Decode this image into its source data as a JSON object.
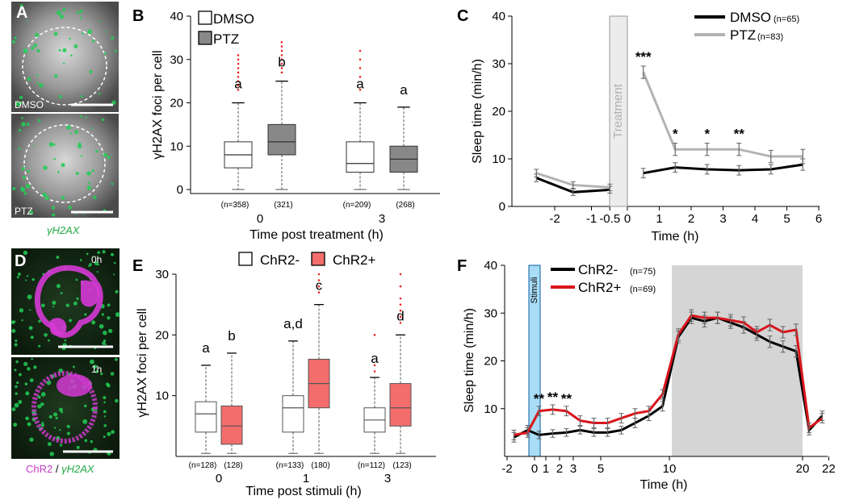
{
  "colors": {
    "dmso": "#ffffff",
    "ptz": "#888888",
    "chr2_neg": "#ffffff",
    "chr2_pos": "#f36d6d",
    "line_dmso": "#000000",
    "line_ptz": "#b3b3b3",
    "line_chr2_pos": "#d9151b",
    "outlier": "#e8261f",
    "stimuli_bar": "#a9dcf6",
    "treatment_bar": "#ececec",
    "night_shade": "#d5d5d5",
    "gfp": "#22cc55",
    "magenta": "#e040e0"
  },
  "panels": {
    "A": {
      "letter": "A",
      "images": [
        {
          "label": "DMSO",
          "icon": "nucleus-micrograph"
        },
        {
          "label": "PTZ",
          "icon": "nucleus-micrograph"
        }
      ],
      "caption": "γH2AX"
    },
    "D": {
      "letter": "D",
      "images": [
        {
          "label": "0h",
          "icon": "neuron-micrograph"
        },
        {
          "label": "1h",
          "icon": "neuron-micrograph"
        }
      ],
      "caption_chr2": "ChR2",
      "caption_sep": " / ",
      "caption_h2ax": "γH2AX"
    }
  },
  "chart_data": [
    {
      "panel": "B",
      "type": "box",
      "ylabel": "γH2AX foci per cell",
      "xlabel": "Time post treatment (h)",
      "ylim": [
        0,
        40
      ],
      "yticks": [
        0,
        10,
        20,
        30,
        40
      ],
      "legend": [
        "DMSO",
        "PTZ"
      ],
      "groups": [
        {
          "label": "0",
          "boxes": [
            {
              "series": "DMSO",
              "n": "(n=358)",
              "min": 0,
              "q1": 5,
              "median": 8,
              "q3": 11,
              "max": 20,
              "outliers": [
                23,
                24,
                25,
                26,
                27,
                28,
                29,
                30,
                31
              ],
              "letter": "a"
            },
            {
              "series": "PTZ",
              "n": "(321)",
              "min": 0,
              "q1": 8,
              "median": 11,
              "q3": 15,
              "max": 25,
              "outliers": [
                27,
                28,
                29,
                30,
                31,
                32,
                33,
                34
              ],
              "letter": "b"
            }
          ]
        },
        {
          "label": "3",
          "boxes": [
            {
              "series": "DMSO",
              "n": "(n=209)",
              "min": 0,
              "q1": 4,
              "median": 6,
              "q3": 11,
              "max": 20,
              "outliers": [
                23,
                26,
                28,
                30,
                32
              ],
              "letter": "a"
            },
            {
              "series": "PTZ",
              "n": "(268)",
              "min": 0,
              "q1": 4,
              "median": 7,
              "q3": 10,
              "max": 19,
              "outliers": [],
              "letter": "a"
            }
          ]
        }
      ]
    },
    {
      "panel": "C",
      "type": "line",
      "ylabel": "Sleep time (min/h)",
      "xlabel": "Time (h)",
      "ylim": [
        0,
        40
      ],
      "yticks": [
        0,
        10,
        20,
        30,
        40
      ],
      "xticks_pre": [
        "-2",
        "-1",
        "-0.5"
      ],
      "xticks_post": [
        "0",
        "1",
        "2",
        "3",
        "4",
        "5",
        "6"
      ],
      "band_label": "Treatment",
      "series": [
        {
          "name": "DMSO",
          "n": "(n=65)",
          "pre": {
            "x": [
              -2.5,
              -1.5,
              -0.5
            ],
            "y": [
              6,
              3,
              3.5
            ],
            "err": [
              0.8,
              0.7,
              0.7
            ]
          },
          "post": {
            "x": [
              0.5,
              1.5,
              2.5,
              3.5,
              4.5,
              5.5
            ],
            "y": [
              7,
              8.2,
              7.8,
              7.6,
              7.8,
              8.8
            ],
            "err": [
              1.0,
              1.0,
              1.0,
              1.0,
              1.0,
              1.2
            ]
          }
        },
        {
          "name": "PTZ",
          "n": "(n=83)",
          "pre": {
            "x": [
              -2.5,
              -1.5,
              -0.5
            ],
            "y": [
              7,
              4.5,
              4
            ],
            "err": [
              0.8,
              0.7,
              0.7
            ]
          },
          "post": {
            "x": [
              0.5,
              1.5,
              2.5,
              3.5,
              4.5,
              5.5
            ],
            "y": [
              28.2,
              12,
              12,
              12,
              10.5,
              10.5
            ],
            "err": [
              1.3,
              1.3,
              1.3,
              1.3,
              1.3,
              1.5
            ]
          }
        }
      ],
      "annotations": [
        {
          "x": 0.5,
          "text": "***"
        },
        {
          "x": 1.5,
          "text": "*"
        },
        {
          "x": 2.5,
          "text": "*"
        },
        {
          "x": 3.5,
          "text": "**"
        }
      ]
    },
    {
      "panel": "E",
      "type": "box",
      "ylabel": "γH2AX foci per cell",
      "xlabel": "Time post stimuli (h)",
      "ylim": [
        0,
        30
      ],
      "yticks": [
        10,
        20,
        30
      ],
      "legend": [
        "ChR2-",
        "ChR2+"
      ],
      "groups": [
        {
          "label": "0",
          "boxes": [
            {
              "series": "ChR2-",
              "n": "(n=128)",
              "min": 0.5,
              "q1": 4,
              "median": 7,
              "q3": 9,
              "max": 15,
              "outliers": [],
              "letter": "a"
            },
            {
              "series": "ChR2+",
              "n": "(128)",
              "min": 0.5,
              "q1": 2,
              "median": 5,
              "q3": 8.3,
              "max": 17,
              "outliers": [],
              "letter": "b"
            }
          ]
        },
        {
          "label": "1",
          "boxes": [
            {
              "series": "ChR2-",
              "n": "(n=133)",
              "min": 0.5,
              "q1": 4,
              "median": 8,
              "q3": 10,
              "max": 19,
              "outliers": [],
              "letter": "a,d"
            },
            {
              "series": "ChR2+",
              "n": "(180)",
              "min": 0.5,
              "q1": 8,
              "median": 12,
              "q3": 16,
              "max": 25,
              "outliers": [
                27,
                28,
                29,
                30
              ],
              "letter": "c"
            }
          ]
        },
        {
          "label": "3",
          "boxes": [
            {
              "series": "ChR2-",
              "n": "(n=112)",
              "min": 0.5,
              "q1": 4,
              "median": 6,
              "q3": 8,
              "max": 13,
              "outliers": [
                14,
                15,
                20
              ],
              "letter": "a"
            },
            {
              "series": "ChR2+",
              "n": "(123)",
              "min": 0.5,
              "q1": 5,
              "median": 8,
              "q3": 12,
              "max": 20,
              "outliers": [
                22,
                23,
                24,
                25,
                26,
                28,
                30
              ],
              "letter": "d"
            }
          ]
        }
      ]
    },
    {
      "panel": "F",
      "type": "line",
      "ylabel": "Sleep time (min/h)",
      "xlabel": "Time (h)",
      "ylim": [
        0,
        40
      ],
      "yticks": [
        10,
        20,
        30,
        40
      ],
      "xticks": [
        "-2",
        "0",
        "1",
        "2",
        "3",
        "5",
        "10",
        "20",
        "22"
      ],
      "band_label": "Stimuli",
      "series": [
        {
          "name": "ChR2-",
          "n": "(n=75)",
          "x": [
            -1.5,
            -0.5,
            0.5,
            1.5,
            2.5,
            3.5,
            4.5,
            5.5,
            6.5,
            7.5,
            8.5,
            9.5,
            10.5,
            11.5,
            12.5,
            13.5,
            14.5,
            15.5,
            16.5,
            17.5,
            18.5,
            19.5,
            20.5,
            21.5
          ],
          "y": [
            4,
            5.5,
            4.5,
            4.8,
            5,
            5.5,
            5,
            5,
            5.5,
            7,
            8.5,
            10.5,
            25,
            29,
            28.3,
            29,
            28,
            27,
            25.5,
            24,
            23,
            22,
            5.5,
            8.5
          ],
          "err": [
            1,
            1,
            0.8,
            0.8,
            0.8,
            0.8,
            0.8,
            0.8,
            0.8,
            1,
            1,
            1,
            1.2,
            1.2,
            1.2,
            1.2,
            1.2,
            1.2,
            1.2,
            1.2,
            1.2,
            1.2,
            1,
            1
          ]
        },
        {
          "name": "ChR2+",
          "n": "(n=69)",
          "x": [
            -1.5,
            -0.5,
            0.5,
            1.5,
            2.5,
            3.5,
            4.5,
            5.5,
            6.5,
            7.5,
            8.5,
            9.5,
            10.5,
            11.5,
            12.5,
            13.5,
            14.5,
            15.5,
            16.5,
            17.5,
            18.5,
            19.5,
            20.5,
            21.5
          ],
          "y": [
            4.5,
            5,
            9.5,
            9.8,
            9.5,
            7.5,
            7,
            7,
            8,
            9,
            9.5,
            13,
            25.5,
            29.5,
            29,
            29,
            28.5,
            28,
            26,
            27.5,
            26,
            26.5,
            6,
            8
          ],
          "err": [
            1,
            1,
            1,
            1,
            1,
            1,
            1,
            1,
            1,
            1,
            1,
            1,
            1.2,
            1.2,
            1.2,
            1.2,
            1.2,
            1.2,
            1.2,
            1.2,
            1.2,
            1.2,
            1,
            1
          ]
        }
      ],
      "annotations": [
        {
          "x": 0.5,
          "text": "**"
        },
        {
          "x": 1.5,
          "text": "**"
        },
        {
          "x": 2.5,
          "text": "**"
        }
      ]
    }
  ]
}
